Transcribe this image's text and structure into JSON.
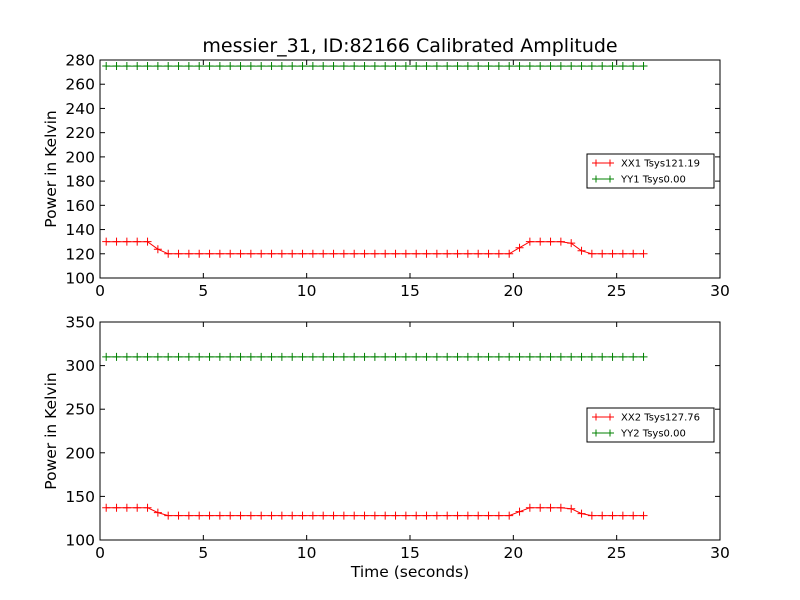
{
  "chart_data": [
    {
      "type": "line",
      "title": "messier_31, ID:82166 Calibrated Amplitude",
      "xlabel": "",
      "ylabel": "Power in Kelvin",
      "xlim": [
        0,
        30
      ],
      "ylim": [
        100,
        280
      ],
      "xticks": [
        0,
        5,
        10,
        15,
        20,
        25,
        30
      ],
      "yticks": [
        100,
        120,
        140,
        160,
        180,
        200,
        220,
        240,
        260,
        280
      ],
      "legend_position": "center-right",
      "series": [
        {
          "name": "XX1 Tsys121.19",
          "color": "#ff0000",
          "segments": [
            {
              "x_start": 0.3,
              "x_end": 2.3,
              "y_start": 130,
              "y_end": 130
            },
            {
              "x_start": 2.3,
              "x_end": 3.1,
              "y_start": 130,
              "y_end": 120
            },
            {
              "x_start": 3.1,
              "x_end": 19.9,
              "y_start": 120,
              "y_end": 120
            },
            {
              "x_start": 19.9,
              "x_end": 20.7,
              "y_start": 120,
              "y_end": 130
            },
            {
              "x_start": 20.7,
              "x_end": 22.7,
              "y_start": 130,
              "y_end": 130
            },
            {
              "x_start": 22.7,
              "x_end": 23.5,
              "y_start": 130,
              "y_end": 120
            },
            {
              "x_start": 23.5,
              "x_end": 26.5,
              "y_start": 120,
              "y_end": 120
            }
          ]
        },
        {
          "name": "YY1 Tsys0.00",
          "color": "#008000",
          "segments": [
            {
              "x_start": 0.3,
              "x_end": 26.5,
              "y_start": 275,
              "y_end": 275
            }
          ]
        }
      ]
    },
    {
      "type": "line",
      "title": "",
      "xlabel": "Time (seconds)",
      "ylabel": "Power in Kelvin",
      "xlim": [
        0,
        30
      ],
      "ylim": [
        100,
        350
      ],
      "xticks": [
        0,
        5,
        10,
        15,
        20,
        25,
        30
      ],
      "yticks": [
        100,
        150,
        200,
        250,
        300,
        350
      ],
      "legend_position": "center-right",
      "series": [
        {
          "name": "XX2 Tsys127.76",
          "color": "#ff0000",
          "segments": [
            {
              "x_start": 0.3,
              "x_end": 2.3,
              "y_start": 137,
              "y_end": 137
            },
            {
              "x_start": 2.3,
              "x_end": 3.1,
              "y_start": 137,
              "y_end": 128
            },
            {
              "x_start": 3.1,
              "x_end": 19.9,
              "y_start": 128,
              "y_end": 128
            },
            {
              "x_start": 19.9,
              "x_end": 20.7,
              "y_start": 128,
              "y_end": 137
            },
            {
              "x_start": 20.7,
              "x_end": 22.7,
              "y_start": 137,
              "y_end": 137
            },
            {
              "x_start": 22.7,
              "x_end": 23.5,
              "y_start": 137,
              "y_end": 128
            },
            {
              "x_start": 23.5,
              "x_end": 26.5,
              "y_start": 128,
              "y_end": 128
            }
          ]
        },
        {
          "name": "YY2 Tsys0.00",
          "color": "#008000",
          "segments": [
            {
              "x_start": 0.3,
              "x_end": 26.5,
              "y_start": 310,
              "y_end": 310
            }
          ]
        }
      ]
    }
  ]
}
